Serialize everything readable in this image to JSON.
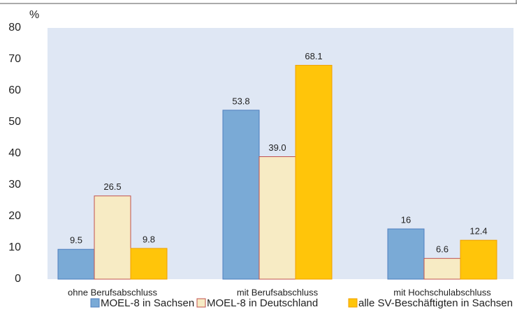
{
  "chart_data": {
    "type": "bar",
    "y_axis_label": "%",
    "categories": [
      "ohne Berufsabschluss",
      "mit Berufsabschluss",
      "mit Hochschulabschluss"
    ],
    "series": [
      {
        "name": "MOEL-8 in Sachsen",
        "color": "#7aaad6",
        "border": "#4f7fbf",
        "values": [
          9.5,
          53.8,
          16
        ]
      },
      {
        "name": "MOEL-8 in Deutschland",
        "color": "#f7ebc4",
        "border": "#c0504d",
        "values": [
          26.5,
          39.0,
          6.6
        ],
        "value_labels": [
          "26.5",
          "39.0",
          "6.6"
        ]
      },
      {
        "name": "alle SV-Beschäftigten in Sachsen",
        "color": "#ffc50a",
        "border": "#f0a000",
        "values": [
          9.8,
          68.1,
          12.4
        ]
      }
    ],
    "ylim": [
      0,
      80
    ],
    "yticks": [
      0,
      10,
      20,
      30,
      40,
      50,
      60,
      70,
      80
    ],
    "grid": false,
    "legend": "bottom"
  }
}
